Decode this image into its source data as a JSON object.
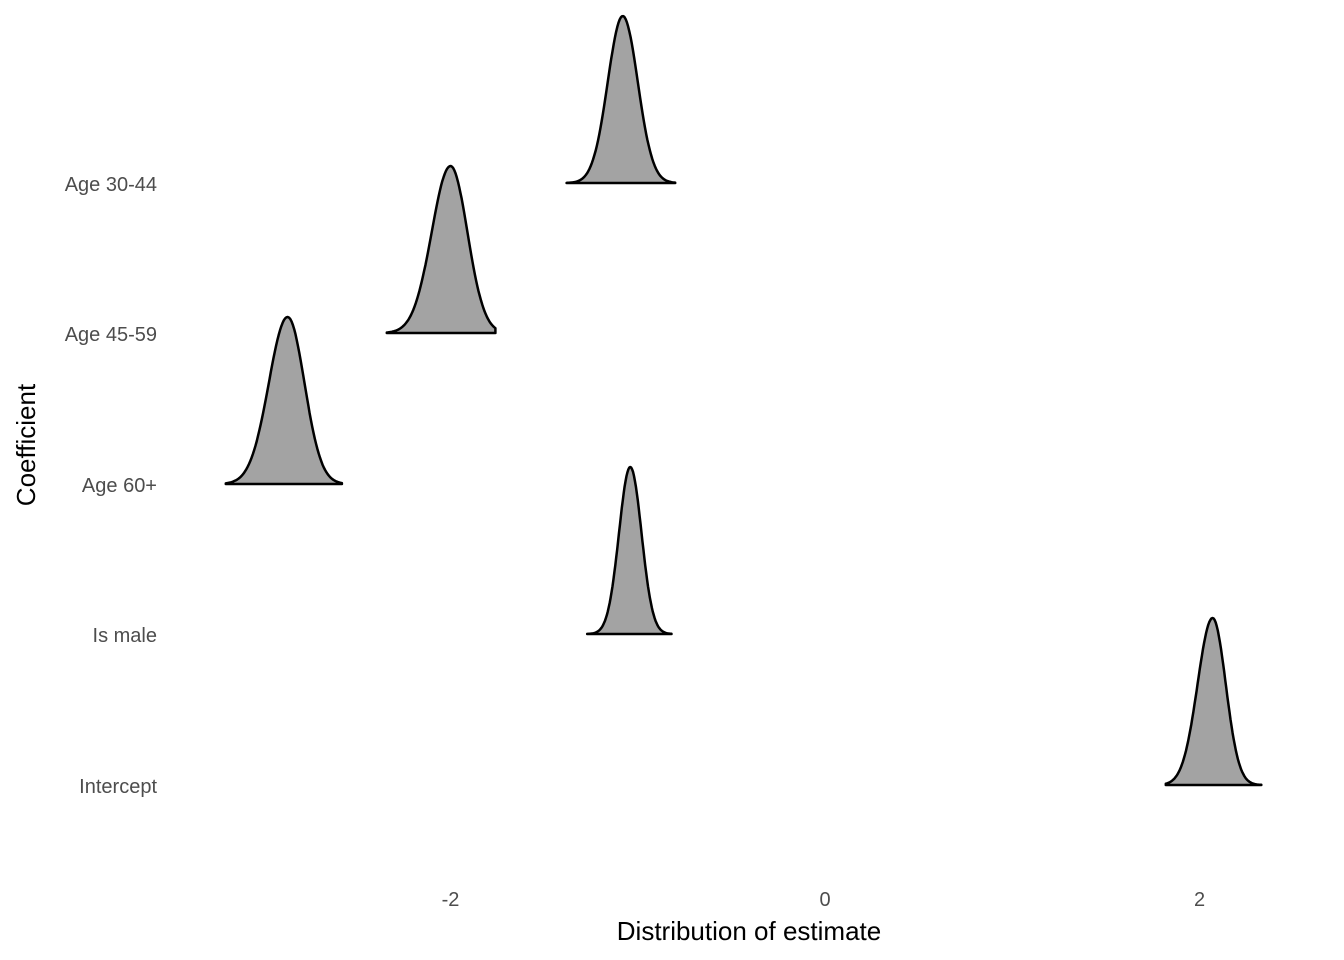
{
  "chart_data": {
    "type": "ridgeline",
    "xlabel": "Distribution of estimate",
    "ylabel": "Coefficient",
    "x_ticks": [
      "-2",
      "0",
      "2"
    ],
    "x_tick_values": [
      -2,
      0,
      2
    ],
    "xlim": [
      -3.5,
      2.5
    ],
    "grid": false,
    "legend": "none",
    "fill_color": "#a3a3a3",
    "line_color": "#000000",
    "series": [
      {
        "label": "Age 30-44",
        "mode": -1.08,
        "min": -1.38,
        "max": -0.8,
        "sd_left": 0.08,
        "sd_right": 0.08
      },
      {
        "label": "Age 45-59",
        "mode": -2.0,
        "min": -2.34,
        "max": -1.76,
        "sd_left": 0.1,
        "sd_right": 0.09
      },
      {
        "label": "Age 60+",
        "mode": -2.87,
        "min": -3.2,
        "max": -2.58,
        "sd_left": 0.1,
        "sd_right": 0.09
      },
      {
        "label": "Is male",
        "mode": -1.04,
        "min": -1.27,
        "max": -0.82,
        "sd_left": 0.06,
        "sd_right": 0.06
      },
      {
        "label": "Intercept",
        "mode": 2.07,
        "min": 1.82,
        "max": 2.33,
        "sd_left": 0.08,
        "sd_right": 0.07
      }
    ]
  }
}
